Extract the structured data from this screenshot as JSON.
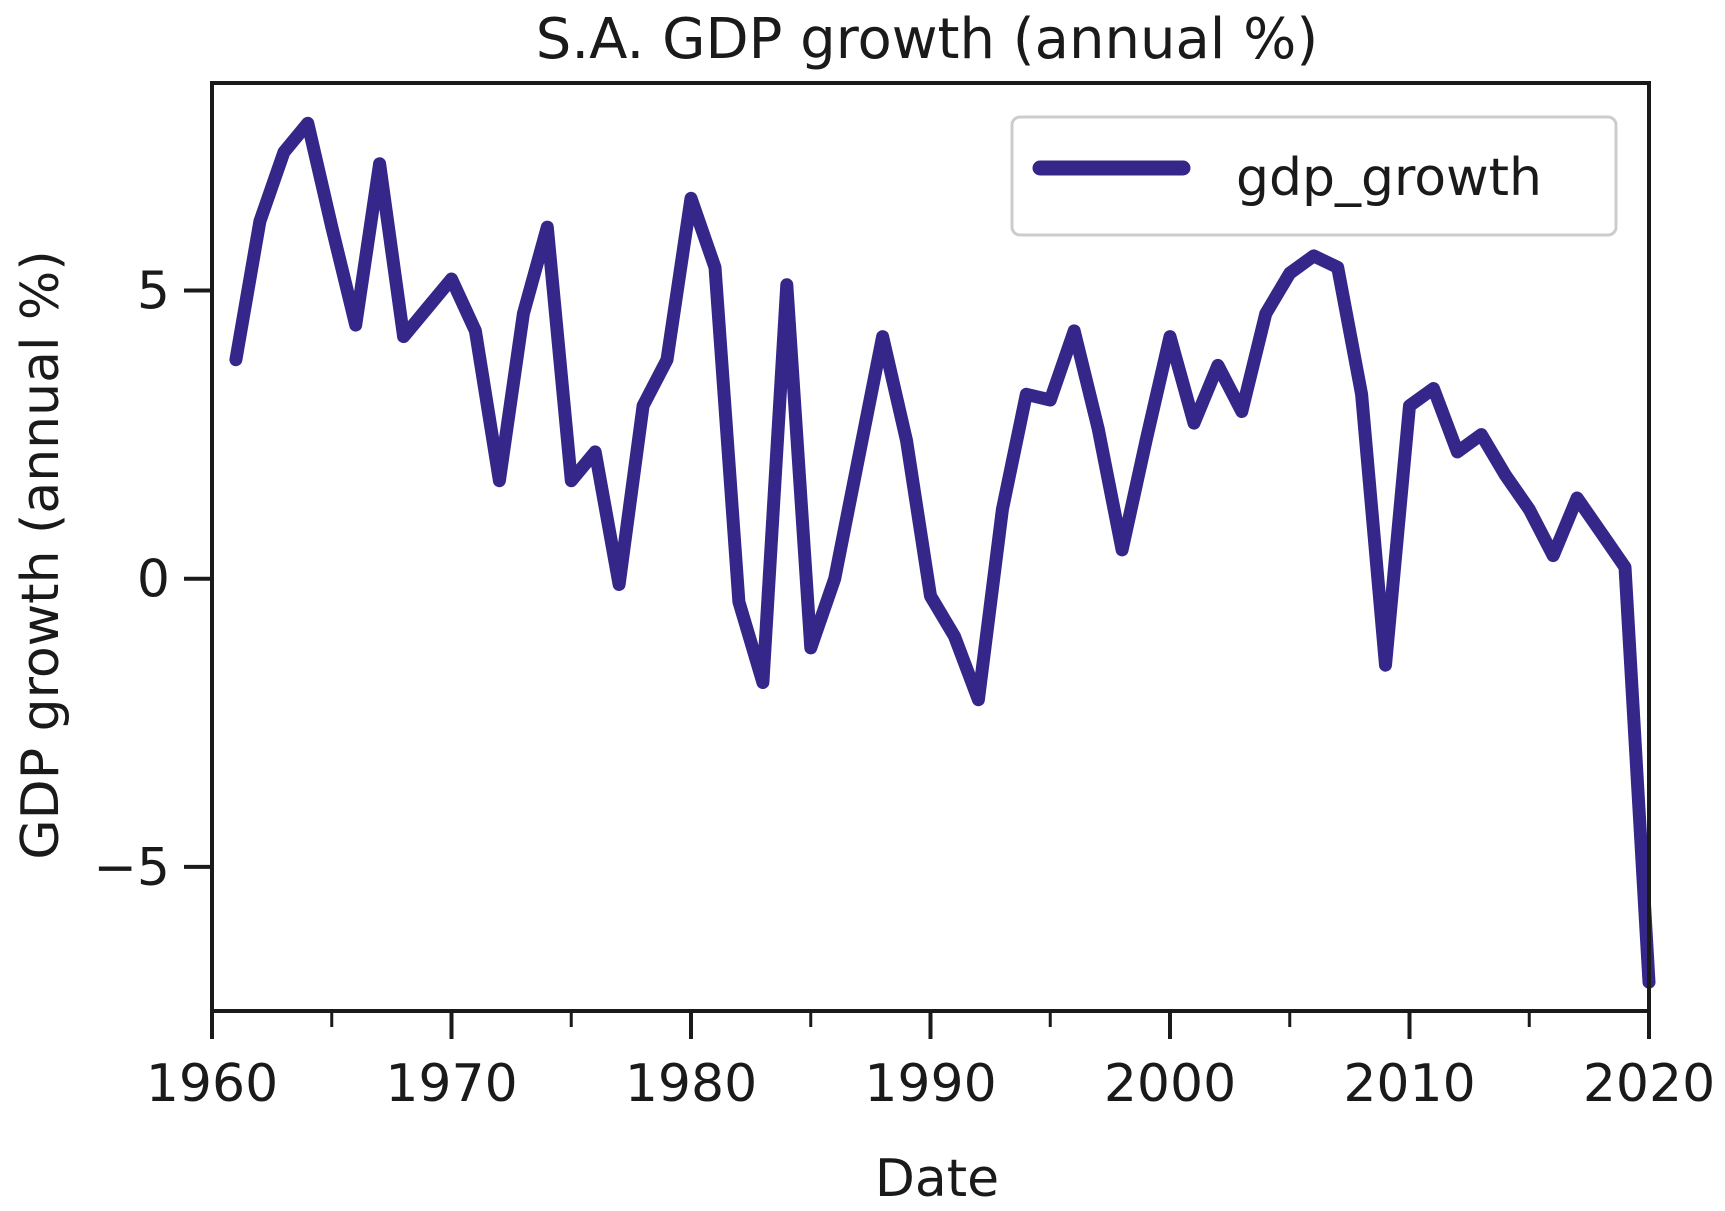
{
  "chart_data": {
    "type": "line",
    "title": "S.A. GDP growth (annual %)",
    "xlabel": "Date",
    "ylabel": "GDP growth (annual %)",
    "xlim": [
      1960,
      2020
    ],
    "ylim": [
      -7.5,
      8.6
    ],
    "x_ticks": [
      1960,
      1970,
      1980,
      1990,
      2000,
      2010,
      2020
    ],
    "x_tick_labels": [
      "1960",
      "1970",
      "1980",
      "1990",
      "2000",
      "2010",
      "2020"
    ],
    "x_minor_ticks": [
      1965,
      1975,
      1985,
      1995,
      2005,
      2015
    ],
    "y_ticks": [
      5,
      0,
      -5
    ],
    "y_tick_labels": [
      "5",
      "0",
      "−5"
    ],
    "grid": false,
    "legend_position": "top-right",
    "series": [
      {
        "name": "gdp_growth",
        "color": "#35278a",
        "x": [
          1961,
          1962,
          1963,
          1964,
          1965,
          1966,
          1967,
          1968,
          1969,
          1970,
          1971,
          1972,
          1973,
          1974,
          1975,
          1976,
          1977,
          1978,
          1979,
          1980,
          1981,
          1982,
          1983,
          1984,
          1985,
          1986,
          1987,
          1988,
          1989,
          1990,
          1991,
          1992,
          1993,
          1994,
          1995,
          1996,
          1997,
          1998,
          1999,
          2000,
          2001,
          2002,
          2003,
          2004,
          2005,
          2006,
          2007,
          2008,
          2009,
          2010,
          2011,
          2012,
          2013,
          2014,
          2015,
          2016,
          2017,
          2018,
          2019,
          2020
        ],
        "values": [
          3.8,
          6.2,
          7.4,
          7.9,
          6.1,
          4.4,
          7.2,
          4.2,
          4.7,
          5.2,
          4.3,
          1.7,
          4.6,
          6.1,
          1.7,
          2.2,
          -0.1,
          3.0,
          3.8,
          6.6,
          5.4,
          -0.4,
          -1.8,
          5.1,
          -1.2,
          0.0,
          2.1,
          4.2,
          2.4,
          -0.3,
          -1.0,
          -2.1,
          1.2,
          3.2,
          3.1,
          4.3,
          2.6,
          0.5,
          2.4,
          4.2,
          2.7,
          3.7,
          2.9,
          4.6,
          5.3,
          5.6,
          5.4,
          3.2,
          -1.5,
          3.0,
          3.3,
          2.2,
          2.5,
          1.8,
          1.2,
          0.4,
          1.4,
          0.8,
          0.2,
          -7.0
        ]
      }
    ]
  }
}
